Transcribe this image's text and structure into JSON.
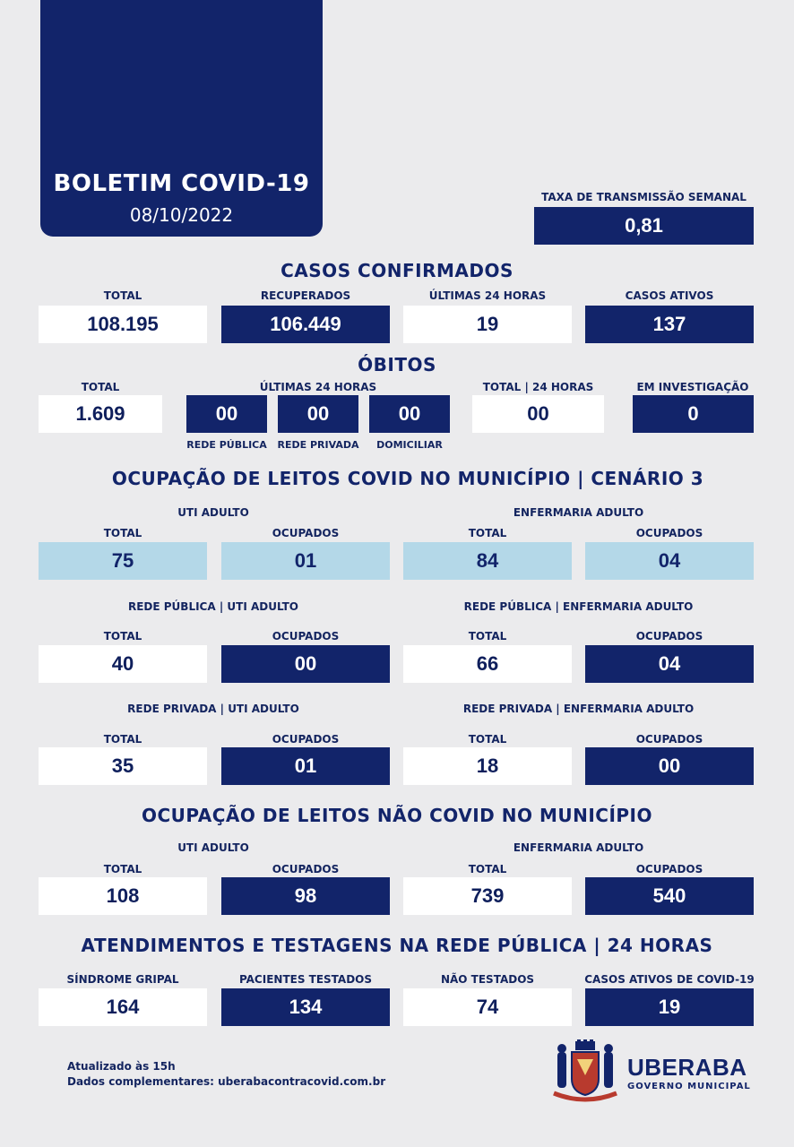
{
  "header": {
    "title": "BOLETIM COVID-19",
    "date": "08/10/2022"
  },
  "taxa": {
    "label": "TAXA DE TRANSMISSÃO SEMANAL",
    "value": "0,81"
  },
  "casos": {
    "title": "CASOS CONFIRMADOS",
    "items": [
      {
        "label": "TOTAL",
        "value": "108.195"
      },
      {
        "label": "RECUPERADOS",
        "value": "106.449"
      },
      {
        "label": "ÚLTIMAS 24 HORAS",
        "value": "19"
      },
      {
        "label": "CASOS ATIVOS",
        "value": "137"
      }
    ]
  },
  "obitos": {
    "title": "ÓBITOS",
    "total_label": "TOTAL",
    "total_value": "1.609",
    "ult_label": "ÚLTIMAS 24 HORAS",
    "ult": [
      {
        "value": "00",
        "sub": "REDE PÚBLICA"
      },
      {
        "value": "00",
        "sub": "REDE PRIVADA"
      },
      {
        "value": "00",
        "sub": "DOMICILIAR"
      }
    ],
    "total24_label": "TOTAL | 24 HORAS",
    "total24_value": "00",
    "invest_label": "EM INVESTIGAÇÃO",
    "invest_value": "0"
  },
  "leitos_covid": {
    "title": "OCUPAÇÃO DE LEITOS COVID NO MUNICÍPIO | CENÁRIO  3",
    "uti_label": "UTI ADULTO",
    "enf_label": "ENFERMARIA ADULTO",
    "row1": [
      {
        "label": "TOTAL",
        "value": "75"
      },
      {
        "label": "OCUPADOS",
        "value": "01"
      },
      {
        "label": "TOTAL",
        "value": "84"
      },
      {
        "label": "OCUPADOS",
        "value": "04"
      }
    ],
    "pub_uti_label": "REDE PÚBLICA | UTI ADULTO",
    "pub_enf_label": "REDE PÚBLICA | ENFERMARIA ADULTO",
    "row2": [
      {
        "label": "TOTAL",
        "value": "40"
      },
      {
        "label": "OCUPADOS",
        "value": "00"
      },
      {
        "label": "TOTAL",
        "value": "66"
      },
      {
        "label": "OCUPADOS",
        "value": "04"
      }
    ],
    "priv_uti_label": "REDE PRIVADA | UTI ADULTO",
    "priv_enf_label": "REDE PRIVADA | ENFERMARIA ADULTO",
    "row3": [
      {
        "label": "TOTAL",
        "value": "35"
      },
      {
        "label": "OCUPADOS",
        "value": "01"
      },
      {
        "label": "TOTAL",
        "value": "18"
      },
      {
        "label": "OCUPADOS",
        "value": "00"
      }
    ]
  },
  "leitos_nao_covid": {
    "title": "OCUPAÇÃO DE LEITOS NÃO COVID NO MUNICÍPIO",
    "uti_label": "UTI ADULTO",
    "enf_label": "ENFERMARIA ADULTO",
    "row": [
      {
        "label": "TOTAL",
        "value": "108"
      },
      {
        "label": "OCUPADOS",
        "value": "98"
      },
      {
        "label": "TOTAL",
        "value": "739"
      },
      {
        "label": "OCUPADOS",
        "value": "540"
      }
    ]
  },
  "atendimentos": {
    "title": "ATENDIMENTOS E TESTAGENS NA REDE PÚBLICA | 24 HORAS",
    "row": [
      {
        "label": "SÍNDROME GRIPAL",
        "value": "164"
      },
      {
        "label": "PACIENTES TESTADOS",
        "value": "134"
      },
      {
        "label": "NÃO TESTADOS",
        "value": "74"
      },
      {
        "label": "CASOS ATIVOS DE COVID-19",
        "value": "19"
      }
    ]
  },
  "footer": {
    "updated": "Atualizado às 15h",
    "more": "Dados complementares: uberabacontracovid.com.br"
  },
  "logo": {
    "name": "UBERABA",
    "sub": "GOVERNO MUNICIPAL",
    "icon": "coat-of-arms-icon"
  },
  "colors": {
    "navy": "#12246a",
    "light_blue": "#b4d8e8",
    "white": "#ffffff",
    "background": "#ebebed"
  }
}
